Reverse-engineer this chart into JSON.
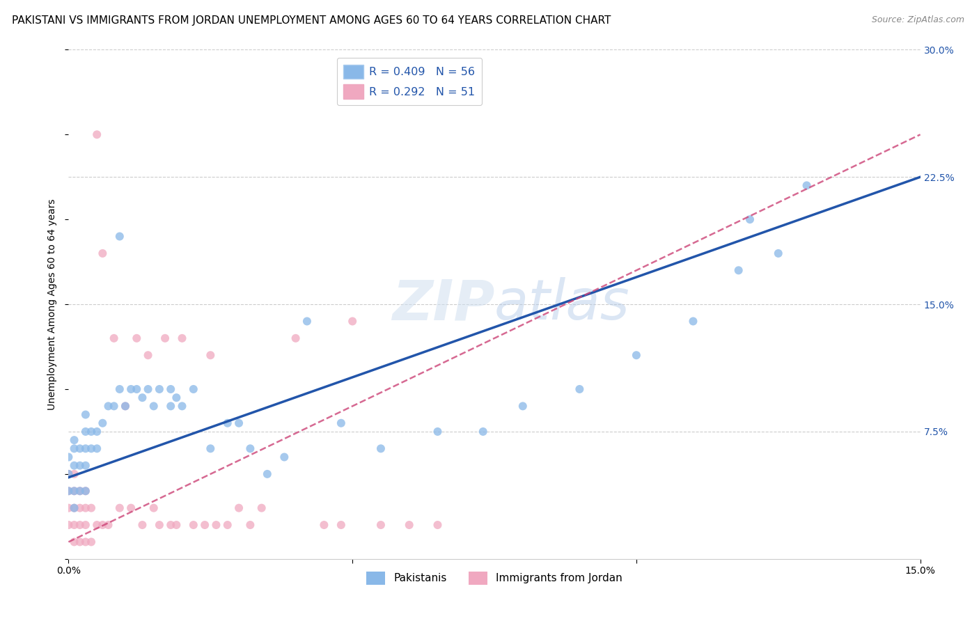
{
  "title": "PAKISTANI VS IMMIGRANTS FROM JORDAN UNEMPLOYMENT AMONG AGES 60 TO 64 YEARS CORRELATION CHART",
  "source": "Source: ZipAtlas.com",
  "ylabel": "Unemployment Among Ages 60 to 64 years",
  "xlim": [
    0.0,
    0.15
  ],
  "ylim": [
    0.0,
    0.3
  ],
  "watermark": "ZIPatlas",
  "pakistanis": {
    "color": "#89b8e8",
    "line_color": "#2255aa",
    "scatter_x": [
      0.0,
      0.0,
      0.0,
      0.001,
      0.001,
      0.001,
      0.001,
      0.001,
      0.002,
      0.002,
      0.002,
      0.002,
      0.003,
      0.003,
      0.003,
      0.003,
      0.004,
      0.004,
      0.004,
      0.005,
      0.005,
      0.006,
      0.006,
      0.007,
      0.008,
      0.008,
      0.009,
      0.01,
      0.01,
      0.011,
      0.012,
      0.013,
      0.014,
      0.015,
      0.016,
      0.018,
      0.019,
      0.02,
      0.02,
      0.021,
      0.022,
      0.025,
      0.026,
      0.028,
      0.03,
      0.032,
      0.034,
      0.035,
      0.038,
      0.04,
      0.045,
      0.05,
      0.055,
      0.065,
      0.075,
      0.12
    ],
    "scatter_y": [
      0.04,
      0.05,
      0.06,
      0.02,
      0.03,
      0.05,
      0.06,
      0.07,
      0.04,
      0.05,
      0.06,
      0.08,
      0.04,
      0.06,
      0.08,
      0.09,
      0.05,
      0.07,
      0.2,
      0.07,
      0.21,
      0.09,
      0.19,
      0.15,
      0.08,
      0.11,
      0.1,
      0.09,
      0.1,
      0.11,
      0.1,
      0.09,
      0.1,
      0.09,
      0.1,
      0.11,
      0.1,
      0.09,
      0.1,
      0.11,
      0.12,
      0.07,
      0.06,
      0.08,
      0.08,
      0.06,
      0.09,
      0.05,
      0.06,
      0.14,
      0.08,
      0.07,
      0.065,
      0.075,
      0.08,
      0.14
    ]
  },
  "jordan": {
    "color": "#f0a8c0",
    "line_color": "#cc4477",
    "scatter_x": [
      0.0,
      0.0,
      0.0,
      0.0,
      0.001,
      0.001,
      0.001,
      0.001,
      0.002,
      0.002,
      0.002,
      0.002,
      0.003,
      0.003,
      0.003,
      0.003,
      0.004,
      0.004,
      0.004,
      0.005,
      0.005,
      0.006,
      0.006,
      0.007,
      0.008,
      0.009,
      0.01,
      0.011,
      0.012,
      0.013,
      0.014,
      0.015,
      0.016,
      0.017,
      0.018,
      0.019,
      0.02,
      0.021,
      0.022,
      0.025,
      0.027,
      0.028,
      0.03,
      0.032,
      0.035,
      0.038,
      0.04,
      0.045,
      0.05,
      0.06,
      0.065
    ],
    "scatter_y": [
      0.02,
      0.03,
      0.04,
      0.05,
      0.01,
      0.02,
      0.03,
      0.04,
      0.01,
      0.02,
      0.03,
      0.04,
      0.01,
      0.02,
      0.03,
      0.04,
      0.01,
      0.02,
      0.03,
      0.01,
      0.25,
      0.02,
      0.18,
      0.03,
      0.14,
      0.03,
      0.09,
      0.02,
      0.13,
      0.02,
      0.12,
      0.03,
      0.02,
      0.13,
      0.03,
      0.02,
      0.13,
      0.03,
      0.02,
      0.12,
      0.02,
      0.03,
      0.02,
      0.13,
      0.03,
      0.02,
      0.13,
      0.02,
      0.02,
      0.03,
      0.02
    ]
  },
  "background_color": "#ffffff",
  "grid_color": "#cccccc",
  "title_fontsize": 11,
  "tick_fontsize": 10,
  "axis_label_fontsize": 10
}
